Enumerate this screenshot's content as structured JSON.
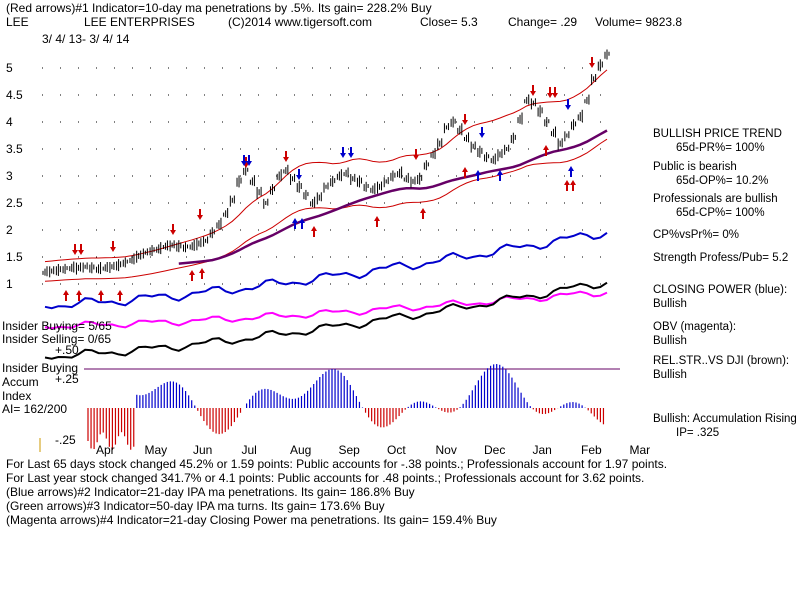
{
  "header": {
    "line1": "(Red arrows)#1 Indicator=10-day ma penetrations by .5%.  Its gain= 228.2% Buy",
    "symbol": "LEE",
    "company": "LEE ENTERPRISES",
    "copyright": "(C)2014 www.tigersoft.com",
    "close": "Close=  5.3",
    "change": "Change= .29",
    "volume": "Volume= 9823.8",
    "daterange": "3/ 4/ 13-  3/ 4/ 14"
  },
  "left_labels": {
    "insider_buying": "Insider Buying= 5/65",
    "insider_selling": "Insider Selling= 0/65",
    "plus50": "+.50",
    "insider_buying2": "Insider Buying",
    "accum": "Accum",
    "plus25": "+.25",
    "index": "Index",
    "ai": "AI= 162/200",
    "minus25": "-.25"
  },
  "right_panel": {
    "trend_title": "BULLISH PRICE TREND",
    "trend_value": "65d-PR%= 100%",
    "public_title": "Public is bearish",
    "public_value": "65d-OP%= 10.2%",
    "pro_title": "Professionals are bullish",
    "pro_value": "65d-CP%= 100%",
    "cp_vs_pr": "CP%vsPr%=  0%",
    "strength": "Strength Profess/Pub= 5.2",
    "closing_power": "CLOSING POWER (blue):",
    "closing_power_v": "Bullish",
    "obv": "OBV (magenta):",
    "obv_v": "Bullish",
    "relstr": "REL.STR..VS DJI (brown):",
    "relstr_v": "Bullish",
    "accum_rising": "Bullish: Accumulation Rising",
    "ip": "IP=  .325"
  },
  "footer": {
    "line1": "For Last 65 days stock changed  45.2% or  1.59 points:  Public accounts for -.38 points.;  Professionals account for  1.97 points.",
    "line2": "For Last year stock changed  341.7% or  4.1 points:  Public accounts for  .48 points.;  Professionals account for  3.62 points.",
    "line3": "(Blue arrows)#2 Indicator=21-day IPA ma penetrations. Its gain= 186.8% Buy",
    "line4": "(Green arrows)#3 Indicator=50-day IPA ma turns.  Its gain= 173.6% Buy",
    "line5": "(Magenta arrows)#4 Indicator=21-day Closing Power ma penetrations.  Its gain= 159.4% Buy"
  },
  "colors": {
    "price": "#000000",
    "band": "#cc0000",
    "ma50": "#660066",
    "closing_power": "#0000cc",
    "obv": "#ff00ff",
    "accum": "#0000cc",
    "accum_neg": "#cc0000"
  },
  "chart_data": {
    "type": "line",
    "y_ticks": [
      "5",
      "4.5",
      "4",
      "3.5",
      "3",
      "2.5",
      "2",
      "1.5",
      "1"
    ],
    "x_ticks": [
      "Apr",
      "May",
      "Jun",
      "Jul",
      "Aug",
      "Sep",
      "Oct",
      "Nov",
      "Dec",
      "Jan",
      "Feb",
      "Mar"
    ],
    "ylim": [
      0.75,
      5.3
    ],
    "price": [
      1.22,
      1.24,
      1.26,
      1.28,
      1.3,
      1.3,
      1.32,
      1.3,
      1.28,
      1.3,
      1.32,
      1.35,
      1.4,
      1.45,
      1.52,
      1.58,
      1.62,
      1.65,
      1.7,
      1.72,
      1.7,
      1.68,
      1.7,
      1.75,
      1.8,
      1.95,
      2.1,
      2.3,
      2.55,
      2.9,
      3.1,
      2.9,
      2.7,
      2.5,
      2.75,
      3.0,
      3.1,
      2.95,
      2.8,
      2.65,
      2.5,
      2.6,
      2.8,
      2.9,
      3.0,
      3.05,
      2.95,
      2.9,
      2.8,
      2.75,
      2.8,
      2.9,
      3.0,
      3.05,
      2.95,
      2.9,
      2.95,
      3.2,
      3.4,
      3.6,
      3.9,
      4.0,
      3.85,
      3.7,
      3.55,
      3.45,
      3.35,
      3.3,
      3.4,
      3.5,
      3.7,
      4.05,
      4.4,
      4.35,
      4.2,
      4.0,
      3.8,
      3.6,
      3.75,
      3.95,
      4.1,
      4.4,
      4.8,
      5.05,
      5.25
    ],
    "closing_power_dir": "up",
    "obv_dir": "up",
    "accum_index_last": 0.325
  }
}
